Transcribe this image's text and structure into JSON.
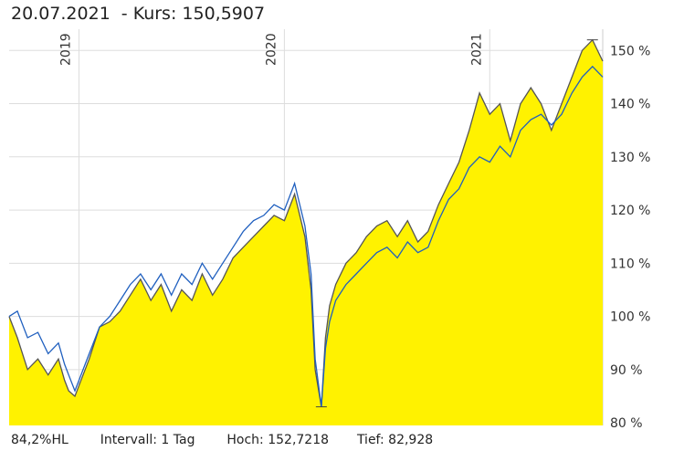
{
  "header": {
    "date": "20.07.2021",
    "kurs_label": "- Kurs:",
    "kurs_value": "150,5907"
  },
  "footer": {
    "hl": "84,2%HL",
    "intervall_label": "Intervall:",
    "intervall_value": "1 Tag",
    "hoch_label": "Hoch:",
    "hoch_value": "152,7218",
    "tief_label": "Tief:",
    "tief_value": "82,928"
  },
  "colors": {
    "area_fill": "#fff200",
    "main_line": "#555555",
    "benchmark_line": "#1f5fbf",
    "grid": "#dddddd"
  },
  "chart_data": {
    "type": "area",
    "x_axis_labels": [
      "2019",
      "2020",
      "2021"
    ],
    "x_axis_positions": [
      2019.0,
      2020.0,
      2021.0
    ],
    "x_range": [
      2018.66,
      2021.55
    ],
    "y_ticks": [
      80,
      90,
      100,
      110,
      120,
      130,
      140,
      150
    ],
    "y_tick_labels": [
      "80 %",
      "90 %",
      "100 %",
      "110 %",
      "120 %",
      "130 %",
      "140 %",
      "150 %"
    ],
    "ylim": [
      79.5,
      154
    ],
    "grid": true,
    "series": [
      {
        "role": "instrument (filled area)",
        "x": [
          2018.66,
          2018.7,
          2018.75,
          2018.8,
          2018.85,
          2018.9,
          2018.93,
          2018.95,
          2018.98,
          2019.0,
          2019.05,
          2019.1,
          2019.15,
          2019.2,
          2019.25,
          2019.3,
          2019.35,
          2019.4,
          2019.45,
          2019.5,
          2019.55,
          2019.6,
          2019.65,
          2019.7,
          2019.75,
          2019.8,
          2019.85,
          2019.9,
          2019.95,
          2020.0,
          2020.05,
          2020.1,
          2020.13,
          2020.15,
          2020.18,
          2020.2,
          2020.22,
          2020.25,
          2020.3,
          2020.35,
          2020.4,
          2020.45,
          2020.5,
          2020.55,
          2020.6,
          2020.65,
          2020.7,
          2020.75,
          2020.8,
          2020.85,
          2020.9,
          2020.95,
          2021.0,
          2021.05,
          2021.1,
          2021.15,
          2021.2,
          2021.25,
          2021.3,
          2021.35,
          2021.4,
          2021.45,
          2021.5,
          2021.55
        ],
        "y": [
          100,
          96,
          90,
          92,
          89,
          92,
          88,
          86,
          85,
          87,
          92,
          98,
          99,
          101,
          104,
          107,
          103,
          106,
          101,
          105,
          103,
          108,
          104,
          107,
          111,
          113,
          115,
          117,
          119,
          118,
          123,
          115,
          105,
          90,
          83,
          96,
          102,
          106,
          110,
          112,
          115,
          117,
          118,
          115,
          118,
          114,
          116,
          121,
          125,
          129,
          135,
          142,
          138,
          140,
          133,
          140,
          143,
          140,
          135,
          140,
          145,
          150,
          152,
          148
        ]
      },
      {
        "role": "benchmark",
        "x": [
          2018.66,
          2018.7,
          2018.75,
          2018.8,
          2018.85,
          2018.9,
          2018.93,
          2018.95,
          2018.98,
          2019.0,
          2019.05,
          2019.1,
          2019.15,
          2019.2,
          2019.25,
          2019.3,
          2019.35,
          2019.4,
          2019.45,
          2019.5,
          2019.55,
          2019.6,
          2019.65,
          2019.7,
          2019.75,
          2019.8,
          2019.85,
          2019.9,
          2019.95,
          2020.0,
          2020.05,
          2020.1,
          2020.13,
          2020.15,
          2020.18,
          2020.2,
          2020.22,
          2020.25,
          2020.3,
          2020.35,
          2020.4,
          2020.45,
          2020.5,
          2020.55,
          2020.6,
          2020.65,
          2020.7,
          2020.75,
          2020.8,
          2020.85,
          2020.9,
          2020.95,
          2021.0,
          2021.05,
          2021.1,
          2021.15,
          2021.2,
          2021.25,
          2021.3,
          2021.35,
          2021.4,
          2021.45,
          2021.5,
          2021.55
        ],
        "y": [
          100,
          101,
          96,
          97,
          93,
          95,
          91,
          89,
          86,
          88,
          93,
          98,
          100,
          103,
          106,
          108,
          105,
          108,
          104,
          108,
          106,
          110,
          107,
          110,
          113,
          116,
          118,
          119,
          121,
          120,
          125,
          117,
          108,
          92,
          83,
          94,
          99,
          103,
          106,
          108,
          110,
          112,
          113,
          111,
          114,
          112,
          113,
          118,
          122,
          124,
          128,
          130,
          129,
          132,
          130,
          135,
          137,
          138,
          136,
          138,
          142,
          145,
          147,
          145
        ]
      }
    ]
  }
}
